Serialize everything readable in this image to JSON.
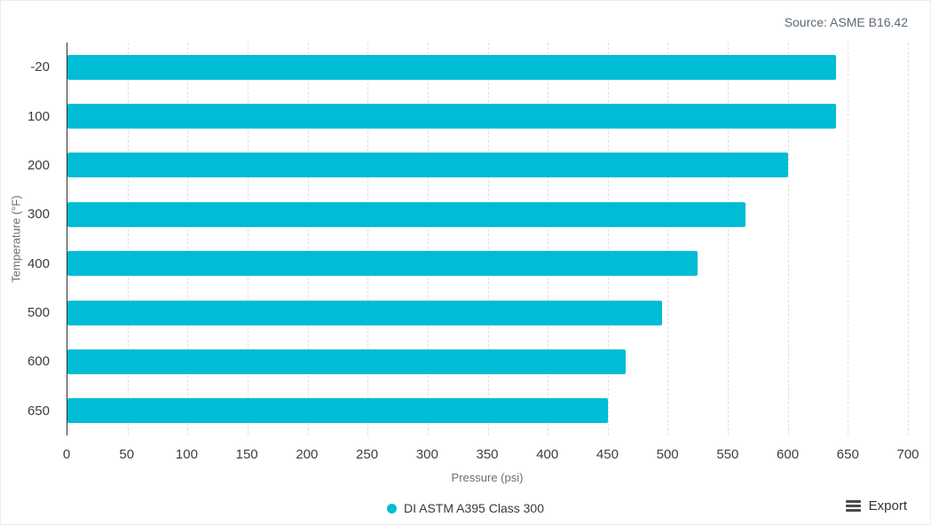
{
  "source_label": "Source: ASME B16.42",
  "chart_data": {
    "type": "bar",
    "orientation": "horizontal",
    "title": "",
    "categories": [
      "-20",
      "100",
      "200",
      "300",
      "400",
      "500",
      "600",
      "650"
    ],
    "series": [
      {
        "name": "DI ASTM A395 Class 300",
        "values": [
          640,
          640,
          600,
          565,
          525,
          495,
          465,
          450
        ]
      }
    ],
    "xlabel": "Pressure (psi)",
    "ylabel": "Temperature (°F)",
    "xlim": [
      0,
      700
    ],
    "xticks": [
      0,
      50,
      100,
      150,
      200,
      250,
      300,
      350,
      400,
      450,
      500,
      550,
      600,
      650,
      700
    ],
    "grid": "vertical-dashed",
    "legend_position": "bottom-center",
    "colors": {
      "bar": "#00bcd4",
      "gridline": "#e0e0e0",
      "axis_line": "#2f2f2f",
      "tick_label": "#3d3d3d",
      "axis_title": "#6d6d6d",
      "source_text": "#5d6a75"
    }
  },
  "legend": {
    "items": [
      {
        "label": "DI ASTM A395 Class 300",
        "color": "#00bcd4"
      }
    ]
  },
  "toolbar": {
    "export_label": "Export"
  }
}
